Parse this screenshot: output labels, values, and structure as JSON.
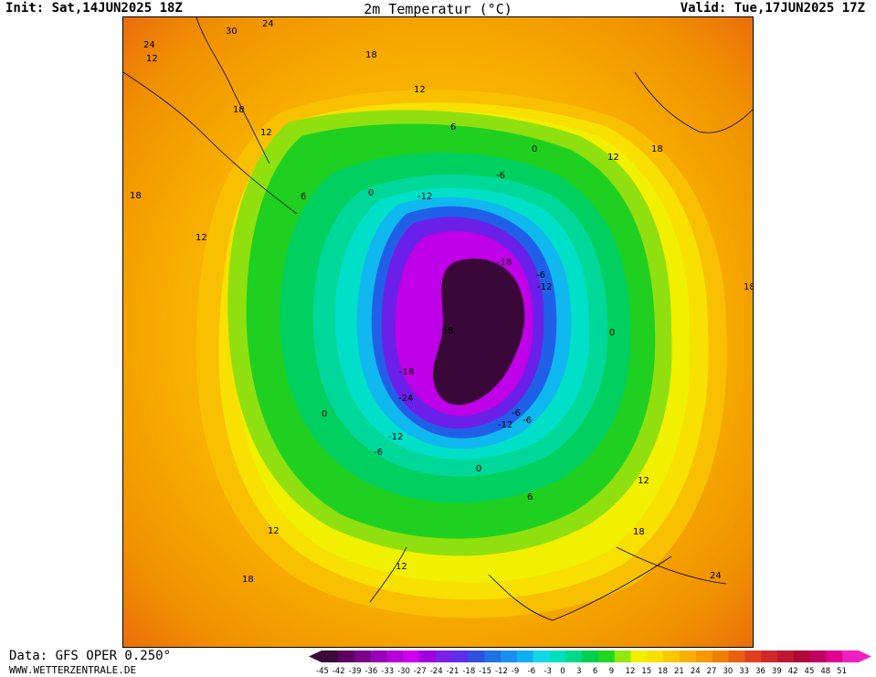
{
  "header": {
    "init": "Init: Sat,14JUN2025 18Z",
    "title": "2m Temperatur (°C)",
    "valid": "Valid: Tue,17JUN2025 17Z"
  },
  "footer": {
    "data_source": "Data: GFS OPER 0.250°",
    "website": "WWW.WETTERZENTRALE.DE"
  },
  "colorbar": {
    "levels": [
      "-45",
      "-42",
      "-39",
      "-36",
      "-33",
      "-30",
      "-27",
      "-24",
      "-21",
      "-18",
      "-15",
      "-12",
      "-9",
      "-6",
      "-3",
      "0",
      "3",
      "6",
      "9",
      "12",
      "15",
      "18",
      "21",
      "24",
      "27",
      "30",
      "33",
      "36",
      "39",
      "42",
      "45",
      "48",
      "51"
    ],
    "colors": [
      "#3a0a3a",
      "#5c0060",
      "#7a0088",
      "#9800b8",
      "#b600d8",
      "#cc00ee",
      "#a000e0",
      "#7a20e8",
      "#5a30e8",
      "#3050e0",
      "#2070e8",
      "#1890ee",
      "#10b0f0",
      "#10d8e8",
      "#00e0c0",
      "#00d88a",
      "#00d050",
      "#20d820",
      "#90e810",
      "#f0f000",
      "#f8e000",
      "#f8c800",
      "#f8b000",
      "#f89800",
      "#f08000",
      "#e86010",
      "#e04020",
      "#d02828",
      "#c01830",
      "#b00838",
      "#c00060",
      "#e00090",
      "#f020c0"
    ]
  },
  "map": {
    "contour_labels": [
      {
        "text": "24"
      },
      {
        "text": "30"
      },
      {
        "text": "24"
      },
      {
        "text": "12"
      },
      {
        "text": "18"
      },
      {
        "text": "12"
      },
      {
        "text": "18"
      },
      {
        "text": "12"
      },
      {
        "text": "6"
      },
      {
        "text": "0"
      },
      {
        "text": "-6"
      },
      {
        "text": "-12"
      },
      {
        "text": "0"
      },
      {
        "text": "6"
      },
      {
        "text": "18"
      },
      {
        "text": "12"
      },
      {
        "text": "18"
      },
      {
        "text": "12"
      },
      {
        "text": "18"
      },
      {
        "text": "0"
      },
      {
        "text": "-6"
      },
      {
        "text": "-12"
      },
      {
        "text": "-18"
      },
      {
        "text": "-58"
      },
      {
        "text": "-6"
      },
      {
        "text": "-12"
      },
      {
        "text": "0"
      },
      {
        "text": "-6"
      },
      {
        "text": "0"
      },
      {
        "text": "6"
      },
      {
        "text": "12"
      },
      {
        "text": "18"
      },
      {
        "text": "24"
      },
      {
        "text": "12"
      },
      {
        "text": "18"
      },
      {
        "text": "12"
      },
      {
        "text": "-12"
      },
      {
        "text": "-6"
      },
      {
        "text": "-24"
      },
      {
        "text": "-18"
      }
    ]
  }
}
